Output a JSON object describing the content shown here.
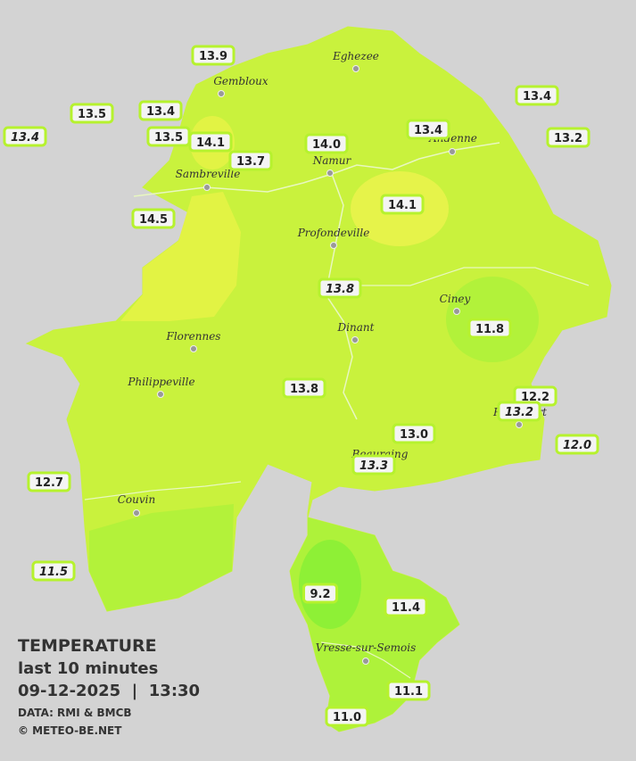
{
  "legend": {
    "title": "TEMPERATURE",
    "subtitle": "last 10 minutes",
    "datetime": "09-12-2025  |  13:30",
    "source": "DATA: RMI & BMCB",
    "credit": "© METEO-BE.NET"
  },
  "towns": [
    "Eghezee",
    "Gembloux",
    "Andenne",
    "Namur",
    "Sambreville",
    "Profondeville",
    "Ciney",
    "Dinant",
    "Florennes",
    "Philippeville",
    "Rochefort",
    "Beauraing",
    "Couvin",
    "Vresse-sur-Semois"
  ],
  "stations": [
    {
      "value": "13.9",
      "italic": false
    },
    {
      "value": "13.5",
      "italic": false
    },
    {
      "value": "13.4",
      "italic": false
    },
    {
      "value": "13.4",
      "italic": true
    },
    {
      "value": "13.5",
      "italic": false
    },
    {
      "value": "14.1",
      "italic": false
    },
    {
      "value": "13.7",
      "italic": false
    },
    {
      "value": "14.0",
      "italic": false
    },
    {
      "value": "13.4",
      "italic": false
    },
    {
      "value": "13.4",
      "italic": false
    },
    {
      "value": "13.2",
      "italic": false
    },
    {
      "value": "14.5",
      "italic": false
    },
    {
      "value": "14.1",
      "italic": false
    },
    {
      "value": "13.8",
      "italic": true
    },
    {
      "value": "11.8",
      "italic": false
    },
    {
      "value": "13.8",
      "italic": false
    },
    {
      "value": "12.2",
      "italic": false
    },
    {
      "value": "13.2",
      "italic": true
    },
    {
      "value": "13.0",
      "italic": false
    },
    {
      "value": "12.0",
      "italic": true
    },
    {
      "value": "13.3",
      "italic": true
    },
    {
      "value": "12.7",
      "italic": false
    },
    {
      "value": "11.5",
      "italic": true
    },
    {
      "value": "9.2",
      "italic": false
    },
    {
      "value": "11.4",
      "italic": false
    },
    {
      "value": "11.1",
      "italic": false
    },
    {
      "value": "11.0",
      "italic": false
    }
  ]
}
